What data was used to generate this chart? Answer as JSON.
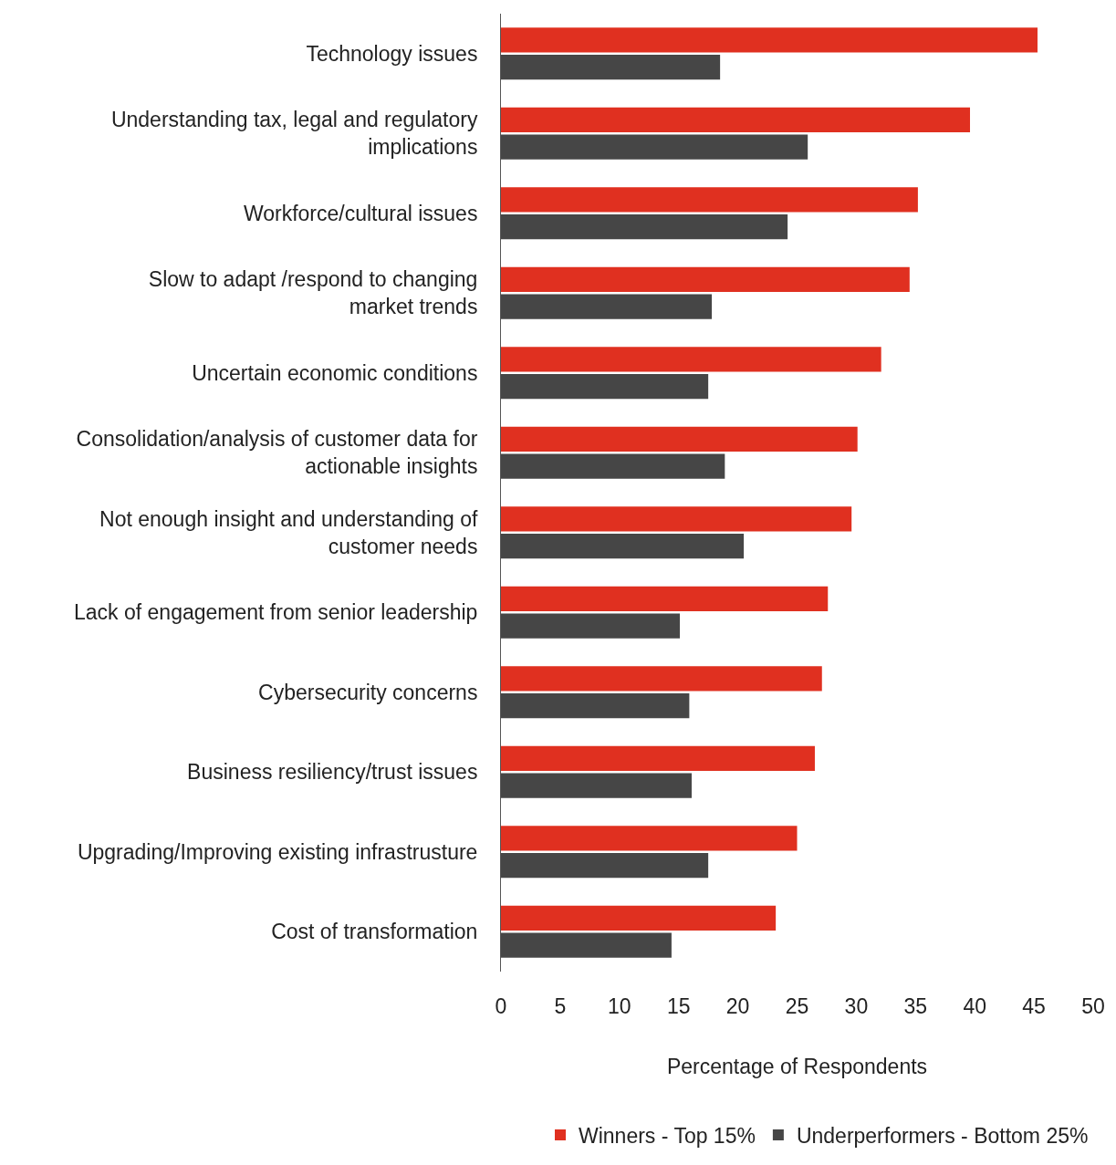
{
  "chart_data": {
    "type": "bar",
    "orientation": "horizontal",
    "categories": [
      "Technology issues",
      "Understanding tax, legal and regulatory\nimplications",
      "Workforce/cultural issues",
      "Slow to adapt /respond to changing\nmarket trends",
      "Uncertain economic conditions",
      "Consolidation/analysis of customer data for\nactionable insights",
      "Not enough insight and understanding of\ncustomer needs",
      "Lack of engagement from senior leadership",
      "Cybersecurity concerns",
      "Business resiliency/trust issues",
      "Upgrading/Improving existing infrastrusture",
      "Cost of transformation"
    ],
    "series": [
      {
        "name": "Winners - Top 15%",
        "color": "#e03020",
        "values": [
          45.3,
          39.6,
          35.2,
          34.5,
          32.1,
          30.1,
          29.6,
          27.6,
          27.1,
          26.5,
          25.0,
          23.2
        ]
      },
      {
        "name": "Underperformers - Bottom 25%",
        "color": "#464646",
        "values": [
          18.5,
          25.9,
          24.2,
          17.8,
          17.5,
          18.9,
          20.5,
          15.1,
          15.9,
          16.1,
          17.5,
          14.4
        ]
      }
    ],
    "xlabel": "Percentage of Respondents",
    "xlim": [
      0,
      50
    ],
    "xticks": [
      0,
      5,
      10,
      15,
      20,
      25,
      30,
      35,
      40,
      45,
      50
    ],
    "legend": "bottom"
  }
}
